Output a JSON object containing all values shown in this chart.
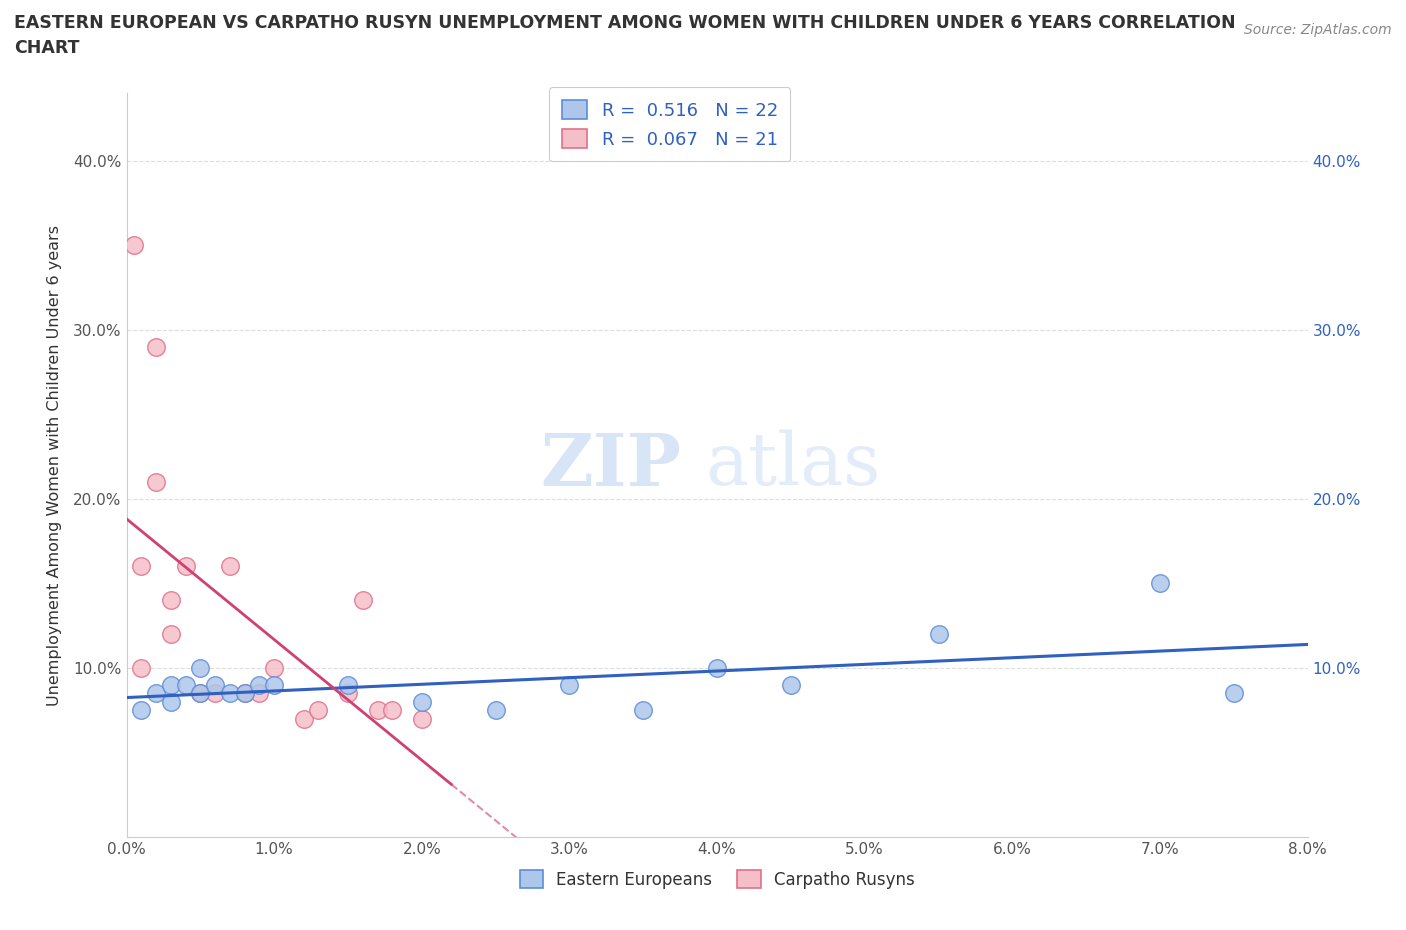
{
  "title_line1": "EASTERN EUROPEAN VS CARPATHO RUSYN UNEMPLOYMENT AMONG WOMEN WITH CHILDREN UNDER 6 YEARS CORRELATION",
  "title_line2": "CHART",
  "source": "Source: ZipAtlas.com",
  "ylabel": "Unemployment Among Women with Children Under 6 years",
  "xlim": [
    0.0,
    0.08
  ],
  "ylim": [
    0.0,
    0.44
  ],
  "xticks": [
    0.0,
    0.01,
    0.02,
    0.03,
    0.04,
    0.05,
    0.06,
    0.07,
    0.08
  ],
  "xticklabels": [
    "0.0%",
    "1.0%",
    "2.0%",
    "3.0%",
    "4.0%",
    "5.0%",
    "6.0%",
    "7.0%",
    "8.0%"
  ],
  "yticks": [
    0.1,
    0.2,
    0.3,
    0.4
  ],
  "yticklabels": [
    "10.0%",
    "20.0%",
    "30.0%",
    "40.0%"
  ],
  "right_yticks": [
    0.1,
    0.2,
    0.3,
    0.4
  ],
  "right_yticklabels": [
    "10.0%",
    "20.0%",
    "30.0%",
    "40.0%"
  ],
  "watermark_zip": "ZIP",
  "watermark_atlas": "atlas",
  "R_blue": "0.516",
  "N_blue": "22",
  "R_pink": "0.067",
  "N_pink": "21",
  "blue_fill": "#aec6ea",
  "blue_edge": "#5b8dd9",
  "pink_fill": "#f5bfc8",
  "pink_edge": "#e0708a",
  "blue_line_color": "#3060c0",
  "pink_line_color": "#d04070",
  "grid_color": "#dddddd",
  "eastern_europeans_x": [
    0.001,
    0.002,
    0.003,
    0.003,
    0.004,
    0.005,
    0.005,
    0.006,
    0.007,
    0.008,
    0.009,
    0.01,
    0.015,
    0.02,
    0.025,
    0.03,
    0.035,
    0.04,
    0.045,
    0.055,
    0.07,
    0.075
  ],
  "eastern_europeans_y": [
    0.075,
    0.085,
    0.09,
    0.08,
    0.09,
    0.085,
    0.1,
    0.09,
    0.085,
    0.085,
    0.09,
    0.09,
    0.09,
    0.08,
    0.075,
    0.09,
    0.075,
    0.1,
    0.09,
    0.12,
    0.15,
    0.085
  ],
  "carpatho_rusyns_x": [
    0.0005,
    0.001,
    0.001,
    0.002,
    0.002,
    0.003,
    0.003,
    0.004,
    0.005,
    0.006,
    0.007,
    0.008,
    0.009,
    0.01,
    0.012,
    0.013,
    0.015,
    0.016,
    0.017,
    0.018,
    0.02
  ],
  "carpatho_rusyns_y": [
    0.35,
    0.16,
    0.1,
    0.29,
    0.21,
    0.14,
    0.12,
    0.16,
    0.085,
    0.085,
    0.16,
    0.085,
    0.085,
    0.1,
    0.07,
    0.075,
    0.085,
    0.14,
    0.075,
    0.075,
    0.07
  ],
  "scatter_size": 160,
  "background_color": "#ffffff"
}
